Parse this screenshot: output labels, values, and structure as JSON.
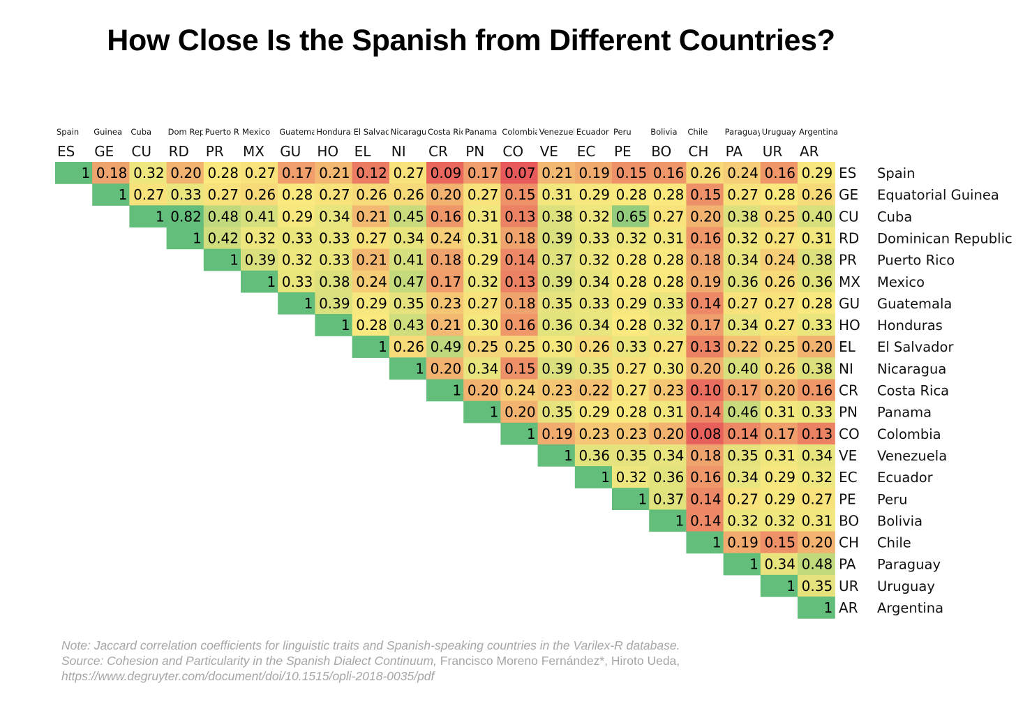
{
  "title": "How Close Is the Spanish from Different Countries?",
  "chart_data": {
    "type": "heatmap",
    "title": "How Close Is the Spanish from Different Countries?",
    "column_names": [
      "Spain",
      "Guinea",
      "Cuba",
      "Dom Rep",
      "Puerto R",
      "Mexico",
      "Guatemala",
      "Honduras",
      "El Salvador",
      "Nicaragua",
      "Costa Rica",
      "Panama",
      "Colombia",
      "Venezuela",
      "Ecuador",
      "Peru",
      "Bolivia",
      "Chile",
      "Paraguay",
      "Uruguay",
      "Argentina"
    ],
    "codes": [
      "ES",
      "GE",
      "CU",
      "RD",
      "PR",
      "MX",
      "GU",
      "HO",
      "EL",
      "NI",
      "CR",
      "PN",
      "CO",
      "VE",
      "EC",
      "PE",
      "BO",
      "CH",
      "PA",
      "UR",
      "AR"
    ],
    "row_names": [
      "Spain",
      "Equatorial Guinea",
      "Cuba",
      "Dominican Republic",
      "Puerto Rico",
      "Mexico",
      "Guatemala",
      "Honduras",
      "El Salvador",
      "Nicaragua",
      "Costa Rica",
      "Panama",
      "Colombia",
      "Venezuela",
      "Ecuador",
      "Peru",
      "Bolivia",
      "Chile",
      "Paraguay",
      "Uruguay",
      "Argentina"
    ],
    "value_labels": [
      [
        "1",
        "0.18",
        "0.32",
        "0.20",
        "0.28",
        "0.27",
        "0.17",
        "0.21",
        "0.12",
        "0.27",
        "0.09",
        "0.17",
        "0.07",
        "0.21",
        "0.19",
        "0.15",
        "0.16",
        "0.26",
        "0.24",
        "0.16",
        "0.29"
      ],
      [
        "1",
        "0.27",
        "0.33",
        "0.27",
        "0.26",
        "0.28",
        "0.27",
        "0.26",
        "0.26",
        "0.20",
        "0.27",
        "0.15",
        "0.31",
        "0.29",
        "0.28",
        "0.28",
        "0.15",
        "0.27",
        "0.28",
        "0.26"
      ],
      [
        "1",
        "0.82",
        "0.48",
        "0.41",
        "0.29",
        "0.34",
        "0.21",
        "0.45",
        "0.16",
        "0.31",
        "0.13",
        "0.38",
        "0.32",
        "0.65",
        "0.27",
        "0.20",
        "0.38",
        "0.25",
        "0.40"
      ],
      [
        "1",
        "0.42",
        "0.32",
        "0.33",
        "0.33",
        "0.27",
        "0.34",
        "0.24",
        "0.31",
        "0.18",
        "0.39",
        "0.33",
        "0.32",
        "0.31",
        "0.16",
        "0.32",
        "0.27",
        "0.31"
      ],
      [
        "1",
        "0.39",
        "0.32",
        "0.33",
        "0.21",
        "0.41",
        "0.18",
        "0.29",
        "0.14",
        "0.37",
        "0.32",
        "0.28",
        "0.28",
        "0.18",
        "0.34",
        "0.24",
        "0.38"
      ],
      [
        "1",
        "0.33",
        "0.38",
        "0.24",
        "0.47",
        "0.17",
        "0.32",
        "0.13",
        "0.39",
        "0.34",
        "0.28",
        "0.28",
        "0.19",
        "0.36",
        "0.26",
        "0.36"
      ],
      [
        "1",
        "0.39",
        "0.29",
        "0.35",
        "0.23",
        "0.27",
        "0.18",
        "0.35",
        "0.33",
        "0.29",
        "0.33",
        "0.14",
        "0.27",
        "0.27",
        "0.28"
      ],
      [
        "1",
        "0.28",
        "0.43",
        "0.21",
        "0.30",
        "0.16",
        "0.36",
        "0.34",
        "0.28",
        "0.32",
        "0.17",
        "0.34",
        "0.27",
        "0.33"
      ],
      [
        "1",
        "0.26",
        "0.49",
        "0.25",
        "0.25",
        "0.30",
        "0.26",
        "0.33",
        "0.27",
        "0.13",
        "0.22",
        "0.25",
        "0.20"
      ],
      [
        "1",
        "0.20",
        "0.34",
        "0.15",
        "0.39",
        "0.35",
        "0.27",
        "0.30",
        "0.20",
        "0.40",
        "0.26",
        "0.38"
      ],
      [
        "1",
        "0.20",
        "0.24",
        "0.23",
        "0.22",
        "0.27",
        "0.23",
        "0.10",
        "0.17",
        "0.20",
        "0.16"
      ],
      [
        "1",
        "0.20",
        "0.35",
        "0.29",
        "0.28",
        "0.31",
        "0.14",
        "0.46",
        "0.31",
        "0.33"
      ],
      [
        "1",
        "0.19",
        "0.23",
        "0.23",
        "0.20",
        "0.08",
        "0.14",
        "0.17",
        "0.13"
      ],
      [
        "1",
        "0.36",
        "0.35",
        "0.34",
        "0.18",
        "0.35",
        "0.31",
        "0.34"
      ],
      [
        "1",
        "0.32",
        "0.36",
        "0.16",
        "0.34",
        "0.29",
        "0.32"
      ],
      [
        "1",
        "0.37",
        "0.14",
        "0.27",
        "0.29",
        "0.27"
      ],
      [
        "1",
        "0.14",
        "0.32",
        "0.32",
        "0.31"
      ],
      [
        "1",
        "0.19",
        "0.15",
        "0.20"
      ],
      [
        "1",
        "0.34",
        "0.48"
      ],
      [
        "1",
        "0.35"
      ],
      [
        "1"
      ]
    ],
    "color_scale": {
      "low": "#e7595a",
      "mid": "#f9e97e",
      "high": "#63be7b",
      "diagonal": "#63be7b"
    }
  },
  "notes": {
    "line1": "Note: Jaccard correlation coefficients for linguistic traits and Spanish-speaking countries in the Varilex-R database.",
    "line2_italic": "Source: Cohesion and Particularity in the Spanish Dialect Continuum,",
    "line2_plain": " Francisco Moreno Fernández*, Hiroto Ueda,",
    "line3": "https://www.degruyter.com/document/doi/10.1515/opli-2018-0035/pdf"
  }
}
